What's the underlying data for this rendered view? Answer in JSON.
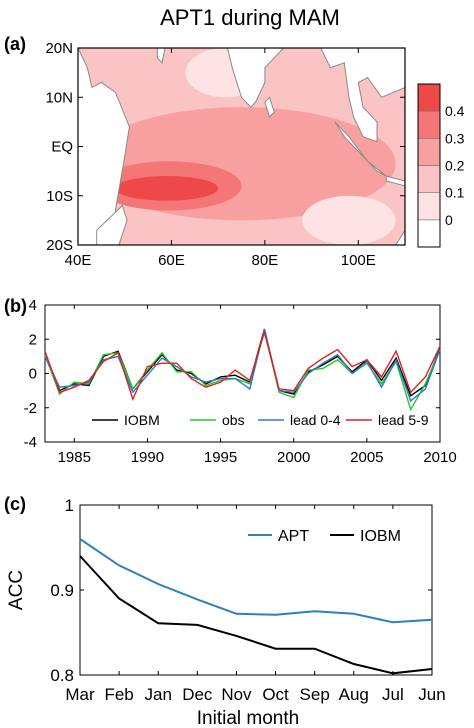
{
  "figure": {
    "title": "APT1 during MAM"
  },
  "chart_data": [
    {
      "panel": "(a)",
      "type": "heatmap",
      "description_of_field": "filled contour map over Indian Ocean",
      "x_ticks": [
        "40E",
        "60E",
        "80E",
        "100E"
      ],
      "y_ticks": [
        "20N",
        "10N",
        "EQ",
        "10S",
        "20S"
      ],
      "xlim": [
        40,
        110
      ],
      "ylim": [
        -20,
        20
      ],
      "colorbar": {
        "levels": [
          0,
          0.1,
          0.2,
          0.3,
          0.4
        ],
        "labels": [
          "0",
          "0.1",
          "0.2",
          "0.3",
          "0.4"
        ],
        "colors": [
          "#ffffff",
          "#fde3e3",
          "#fbc4c4",
          "#f8a0a0",
          "#f47676",
          "#ee4848"
        ]
      },
      "regions": [
        {
          "value": 0.15,
          "lon": [
            40,
            110
          ],
          "lat": [
            -20,
            20
          ]
        },
        {
          "value": 0.25,
          "lon": [
            42,
            108
          ],
          "lat": [
            -15,
            8
          ]
        },
        {
          "value": 0.35,
          "lon": [
            44,
            75
          ],
          "lat": [
            -13,
            -3
          ]
        },
        {
          "value": 0.4,
          "lon": [
            48,
            70
          ],
          "lat": [
            -11,
            -6
          ]
        },
        {
          "value": 0.05,
          "lon": [
            88,
            108
          ],
          "lat": [
            -20,
            -10
          ]
        },
        {
          "value": 0.05,
          "lon": [
            63,
            80
          ],
          "lat": [
            10,
            20
          ]
        }
      ]
    },
    {
      "panel": "(b)",
      "type": "line",
      "xlim": [
        1983,
        2010
      ],
      "ylim": [
        -4,
        4
      ],
      "x_ticks": [
        1985,
        1990,
        1995,
        2000,
        2005,
        2010
      ],
      "y_ticks": [
        -4,
        -2,
        0,
        2,
        4
      ],
      "x": [
        1983,
        1984,
        1985,
        1986,
        1987,
        1988,
        1989,
        1990,
        1991,
        1992,
        1993,
        1994,
        1995,
        1996,
        1997,
        1998,
        1999,
        2000,
        2001,
        2002,
        2003,
        2004,
        2005,
        2006,
        2007,
        2008,
        2009,
        2010
      ],
      "series": [
        {
          "name": "IOBM",
          "color": "#000000",
          "values": [
            1.2,
            -1.0,
            -0.6,
            -0.7,
            1.0,
            1.3,
            -0.9,
            0.1,
            1.1,
            0.2,
            0.0,
            -0.6,
            -0.2,
            -0.1,
            -0.5,
            2.6,
            -1.0,
            -1.2,
            0.1,
            0.5,
            1.0,
            0.1,
            0.8,
            -0.4,
            0.9,
            -1.3,
            -0.7,
            1.5
          ]
        },
        {
          "name": "obs",
          "color": "#22cc22",
          "values": [
            1.1,
            -1.2,
            -0.5,
            -0.6,
            1.1,
            1.2,
            -0.9,
            0.2,
            1.2,
            0.1,
            0.1,
            -0.7,
            -0.4,
            -0.3,
            -0.6,
            2.5,
            -1.1,
            -1.4,
            0.2,
            0.3,
            0.8,
            0.0,
            0.6,
            -0.6,
            0.7,
            -2.1,
            -0.6,
            1.4
          ]
        },
        {
          "name": "lead 0-4",
          "color": "#3377cc",
          "values": [
            1.0,
            -0.8,
            -0.7,
            -0.5,
            0.8,
            1.0,
            -1.1,
            -0.1,
            0.9,
            0.4,
            -0.2,
            -0.5,
            -0.3,
            -0.3,
            -0.9,
            2.6,
            -1.0,
            -1.1,
            0.0,
            0.6,
            1.1,
            0.0,
            0.7,
            -0.8,
            0.8,
            -1.6,
            -0.9,
            1.4
          ]
        },
        {
          "name": "lead 5-9",
          "color": "#dd2222",
          "values": [
            1.3,
            -1.1,
            -0.8,
            -0.4,
            0.7,
            1.2,
            -1.5,
            0.4,
            0.6,
            0.6,
            -0.3,
            -0.8,
            -0.5,
            0.2,
            -0.4,
            2.4,
            -0.9,
            -1.0,
            0.3,
            0.9,
            1.4,
            0.4,
            0.8,
            -0.2,
            1.3,
            -1.1,
            -0.2,
            1.6
          ]
        }
      ]
    },
    {
      "panel": "(c)",
      "type": "line",
      "ylabel": "ACC",
      "xlabel": "Initial month",
      "ylim": [
        0.8,
        1.0
      ],
      "y_ticks": [
        "0.8",
        "0.9",
        "1"
      ],
      "categories": [
        "Mar",
        "Feb",
        "Jan",
        "Dec",
        "Nov",
        "Oct",
        "Sep",
        "Aug",
        "Jul",
        "Jun"
      ],
      "legend_position": "top-right",
      "series": [
        {
          "name": "APT",
          "color": "#2e7fbf",
          "values": [
            0.96,
            0.929,
            0.907,
            0.889,
            0.872,
            0.871,
            0.875,
            0.872,
            0.862,
            0.865
          ]
        },
        {
          "name": "IOBM",
          "color": "#000000",
          "values": [
            0.94,
            0.89,
            0.861,
            0.859,
            0.846,
            0.831,
            0.831,
            0.813,
            0.802,
            0.807
          ]
        }
      ]
    }
  ]
}
